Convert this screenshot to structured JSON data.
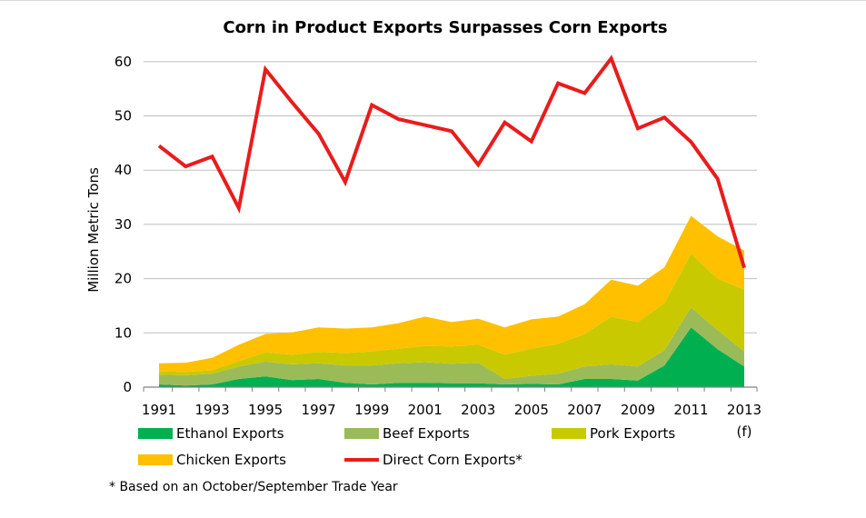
{
  "chart_data": {
    "type": "area",
    "title": "Corn in Product Exports Surpasses Corn Exports",
    "ylabel": "Million Metric Tons",
    "xlabel": "",
    "ylim": [
      0,
      65
    ],
    "yticks": [
      0,
      10,
      20,
      30,
      40,
      50,
      60
    ],
    "x": [
      1991,
      1992,
      1993,
      1994,
      1995,
      1996,
      1997,
      1998,
      1999,
      2000,
      2001,
      2002,
      2003,
      2004,
      2005,
      2006,
      2007,
      2008,
      2009,
      2010,
      2011,
      2012,
      2013
    ],
    "xtick_labels": [
      "1991",
      "1993",
      "1995",
      "1997",
      "1999",
      "2001",
      "2003",
      "2005",
      "2007",
      "2009",
      "2011",
      "2013"
    ],
    "xtick_note": "(f)",
    "grid": "horizontal",
    "legend_placement": "bottom",
    "stacked_series": [
      {
        "name": "Ethanol Exports",
        "color": "#00b050",
        "values": [
          0.5,
          0.3,
          0.5,
          1.5,
          2.0,
          1.3,
          1.5,
          0.8,
          0.5,
          0.8,
          0.8,
          0.7,
          0.7,
          0.5,
          0.6,
          0.5,
          1.5,
          1.5,
          1.2,
          4.0,
          11.0,
          7.0,
          3.8
        ]
      },
      {
        "name": "Beef Exports",
        "color": "#9bbb59",
        "values": [
          1.8,
          1.9,
          2.0,
          2.3,
          2.7,
          2.9,
          2.9,
          3.2,
          3.5,
          3.6,
          3.8,
          3.6,
          3.8,
          1.0,
          1.5,
          2.0,
          2.3,
          2.7,
          2.6,
          2.8,
          3.7,
          3.5,
          2.8
        ]
      },
      {
        "name": "Pork Exports",
        "color": "#c9c900",
        "values": [
          0.6,
          0.6,
          0.6,
          1.0,
          1.7,
          1.8,
          2.1,
          2.3,
          2.6,
          2.7,
          3.0,
          3.2,
          3.3,
          4.5,
          5.0,
          5.5,
          6.0,
          8.8,
          8.2,
          8.7,
          9.9,
          9.5,
          11.4
        ]
      },
      {
        "name": "Chicken Exports",
        "color": "#ffc000",
        "values": [
          1.5,
          1.7,
          2.3,
          3.0,
          3.4,
          4.1,
          4.5,
          4.5,
          4.4,
          4.7,
          5.4,
          4.5,
          4.8,
          5.0,
          5.4,
          5.0,
          5.5,
          6.8,
          6.7,
          6.6,
          7.0,
          7.8,
          7.2
        ]
      }
    ],
    "line_series": [
      {
        "name": "Direct Corn Exports*",
        "color": "#e91c1c",
        "values": [
          44.5,
          40.7,
          42.5,
          33.0,
          58.6,
          52.5,
          46.7,
          37.8,
          52.0,
          49.4,
          48.3,
          47.2,
          41.0,
          48.8,
          45.3,
          56.0,
          54.2,
          60.6,
          47.7,
          49.7,
          45.2,
          38.4,
          22.0
        ]
      }
    ]
  },
  "legend_labels": {
    "ethanol": "Ethanol Exports",
    "beef": "Beef Exports",
    "pork": "Pork Exports",
    "chicken": "Chicken Exports",
    "corn": "Direct Corn Exports*"
  },
  "footnote": "* Based on an October/September Trade Year"
}
